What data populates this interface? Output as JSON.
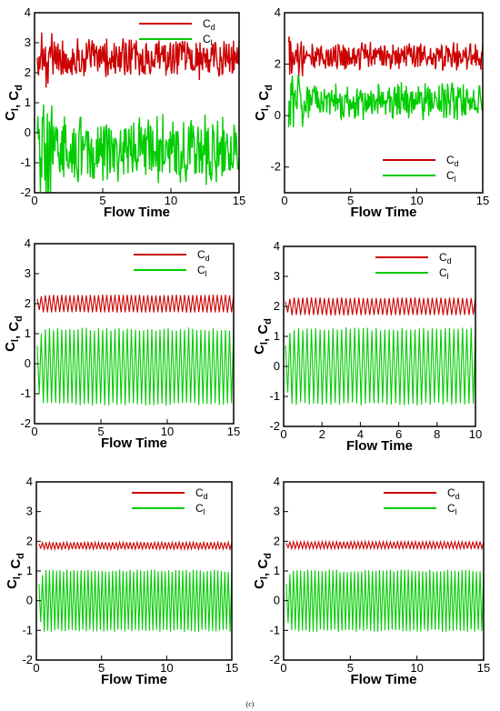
{
  "figure": {
    "caption": "(c)"
  },
  "chart_data": [
    {
      "type": "line",
      "xlabel": "Flow Time",
      "ylabel": {
        "base": "C",
        "sub1": "l",
        "sep": ", ",
        "sub2": "d"
      },
      "xlim": [
        0,
        15
      ],
      "ylim": [
        -2,
        4
      ],
      "xticks": [
        "0",
        "5",
        "10",
        "15"
      ],
      "yticks": [
        "-2",
        "-1",
        "0",
        "1",
        "2",
        "3",
        "4"
      ],
      "legend": {
        "placement": "top-right"
      },
      "series": [
        {
          "name": "Cd",
          "label_base": "C",
          "label_sub": "d",
          "color": "#cc0000",
          "pattern": "noisy",
          "mean": 2.45,
          "amp": 0.75,
          "x0": 0.2
        },
        {
          "name": "Cl",
          "label_base": "C",
          "label_sub": "l",
          "color": "#00cc00",
          "pattern": "noisy",
          "mean": -0.55,
          "amp": 1.2,
          "x0": 0.2
        }
      ]
    },
    {
      "type": "line",
      "xlabel": "Flow Time",
      "ylabel": {
        "base": "C",
        "sub1": "l",
        "sep": ", ",
        "sub2": "d"
      },
      "xlim": [
        0,
        15
      ],
      "ylim": [
        -3,
        4
      ],
      "xticks": [
        "0",
        "5",
        "10",
        "15"
      ],
      "yticks": [
        "-2",
        "0",
        "2",
        "4"
      ],
      "yticks_values": [
        -2,
        0,
        2,
        4
      ],
      "legend": {
        "placement": "bottom-right"
      },
      "series": [
        {
          "name": "Cd",
          "label_base": "C",
          "label_sub": "d",
          "color": "#cc0000",
          "pattern": "noisy",
          "mean": 2.3,
          "amp": 0.6,
          "x0": 0.3
        },
        {
          "name": "Cl",
          "label_base": "C",
          "label_sub": "l",
          "color": "#00cc00",
          "pattern": "noisy",
          "mean": 0.55,
          "amp": 0.8,
          "x0": 0.3
        }
      ]
    },
    {
      "type": "line",
      "xlabel": "Flow Time",
      "ylabel": {
        "base": "C",
        "sub1": "l",
        "sep": ", ",
        "sub2": "d"
      },
      "xlim": [
        0,
        15
      ],
      "ylim": [
        -2,
        4
      ],
      "xticks": [
        "0",
        "5",
        "10",
        "15"
      ],
      "yticks": [
        "-2",
        "-1",
        "0",
        "1",
        "2",
        "3",
        "4"
      ],
      "legend": {
        "placement": "top-right"
      },
      "series": [
        {
          "name": "Cd",
          "label_base": "C",
          "label_sub": "d",
          "color": "#cc0000",
          "pattern": "oscillation",
          "mean": 2.0,
          "amp": 0.3,
          "cycles": 48,
          "x0": 0.2
        },
        {
          "name": "Cl",
          "label_base": "C",
          "label_sub": "l",
          "color": "#00cc00",
          "pattern": "oscillation",
          "mean": -0.1,
          "amp": 1.3,
          "cycles": 48,
          "x0": 0.2
        }
      ]
    },
    {
      "type": "line",
      "xlabel": "Flow Time",
      "ylabel": {
        "base": "C",
        "sub1": "l",
        "sep": ", ",
        "sub2": "d"
      },
      "xlim": [
        0,
        10
      ],
      "ylim": [
        -2,
        4
      ],
      "xticks": [
        "0",
        "2",
        "4",
        "6",
        "8",
        "10"
      ],
      "yticks": [
        "-2",
        "-1",
        "0",
        "1",
        "2",
        "3",
        "4"
      ],
      "legend": {
        "placement": "top-right"
      },
      "series": [
        {
          "name": "Cd",
          "label_base": "C",
          "label_sub": "d",
          "color": "#cc0000",
          "pattern": "oscillation",
          "mean": 2.0,
          "amp": 0.3,
          "cycles": 44,
          "x0": 0.1
        },
        {
          "name": "Cl",
          "label_base": "C",
          "label_sub": "l",
          "color": "#00cc00",
          "pattern": "oscillation",
          "mean": 0.0,
          "amp": 1.3,
          "cycles": 44,
          "x0": 0.1
        }
      ]
    },
    {
      "type": "line",
      "xlabel": "Flow Time",
      "ylabel": {
        "base": "C",
        "sub1": "l",
        "sep": ", ",
        "sub2": "d"
      },
      "xlim": [
        0,
        15
      ],
      "ylim": [
        -2,
        4
      ],
      "xticks": [
        "0",
        "5",
        "10",
        "15"
      ],
      "yticks": [
        "-2",
        "-1",
        "0",
        "1",
        "2",
        "3",
        "4"
      ],
      "legend": {
        "placement": "top-right"
      },
      "series": [
        {
          "name": "Cd",
          "label_base": "C",
          "label_sub": "d",
          "color": "#cc0000",
          "pattern": "oscillation",
          "mean": 1.85,
          "amp": 0.12,
          "cycles": 55,
          "x0": 0.2
        },
        {
          "name": "Cl",
          "label_base": "C",
          "label_sub": "l",
          "color": "#00cc00",
          "pattern": "oscillation",
          "mean": 0.0,
          "amp": 1.05,
          "cycles": 55,
          "x0": 0.2
        }
      ]
    },
    {
      "type": "line",
      "xlabel": "Flow Time",
      "ylabel": {
        "base": "C",
        "sub1": "l",
        "sep": ", ",
        "sub2": "d"
      },
      "xlim": [
        0,
        15
      ],
      "ylim": [
        -2,
        4
      ],
      "xticks": [
        "0",
        "5",
        "10",
        "15"
      ],
      "yticks": [
        "-2",
        "-1",
        "0",
        "1",
        "2",
        "3",
        "4"
      ],
      "legend": {
        "placement": "top-right"
      },
      "series": [
        {
          "name": "Cd",
          "label_base": "C",
          "label_sub": "d",
          "color": "#cc0000",
          "pattern": "oscillation",
          "mean": 1.87,
          "amp": 0.12,
          "cycles": 55,
          "x0": 0.2
        },
        {
          "name": "Cl",
          "label_base": "C",
          "label_sub": "l",
          "color": "#00cc00",
          "pattern": "oscillation",
          "mean": 0.0,
          "amp": 1.05,
          "cycles": 55,
          "x0": 0.2
        }
      ]
    }
  ]
}
